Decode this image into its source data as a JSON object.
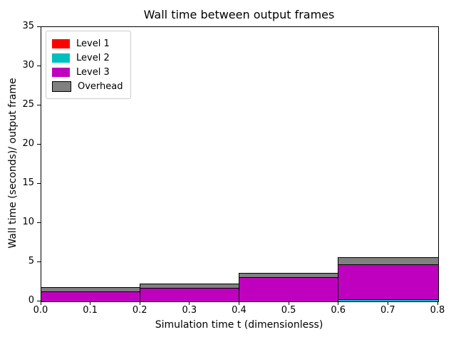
{
  "title": "Wall time between output frames",
  "axes": {
    "xlabel": "Simulation time t (dimensionless)",
    "ylabel": "Wall time (seconds)/ output frame",
    "x_ticks": [
      0.0,
      0.1,
      0.2,
      0.3,
      0.4,
      0.5,
      0.6,
      0.7,
      0.8
    ],
    "y_ticks": [
      0,
      5,
      10,
      15,
      20,
      25,
      30,
      35
    ]
  },
  "legend": {
    "entries": [
      {
        "label": "Level 1",
        "color": "#ff0000",
        "edged": false
      },
      {
        "label": "Level 2",
        "color": "#00bfbf",
        "edged": false
      },
      {
        "label": "Level 3",
        "color": "#bf00bf",
        "edged": false
      },
      {
        "label": "Overhead",
        "color": "#808080",
        "edged": true
      }
    ]
  },
  "chart_data": {
    "type": "bar",
    "stacked": true,
    "title": "Wall time between output frames",
    "xlabel": "Simulation time t (dimensionless)",
    "ylabel": "Wall time (seconds)/ output frame",
    "xlim": [
      0.0,
      0.8
    ],
    "ylim": [
      0,
      35
    ],
    "grid": false,
    "legend_position": "upper left",
    "bar_edgecolor": "#000000",
    "bin_edges_x": [
      0.0,
      0.2,
      0.4,
      0.6,
      0.8
    ],
    "categories": [
      "0.0-0.2",
      "0.2-0.4",
      "0.4-0.6",
      "0.6-0.8"
    ],
    "series": [
      {
        "name": "Level 1",
        "color": "#ff0000",
        "values": [
          0.02,
          0.02,
          0.02,
          0.03
        ]
      },
      {
        "name": "Level 2",
        "color": "#00bfbf",
        "values": [
          0.03,
          0.03,
          0.05,
          0.25
        ]
      },
      {
        "name": "Level 3",
        "color": "#bf00bf",
        "values": [
          1.3,
          1.75,
          3.1,
          4.45
        ]
      },
      {
        "name": "Overhead",
        "color": "#808080",
        "values": [
          0.45,
          0.45,
          0.45,
          0.85
        ]
      }
    ],
    "stack_totals": [
      1.8,
      2.25,
      3.62,
      5.58
    ]
  }
}
